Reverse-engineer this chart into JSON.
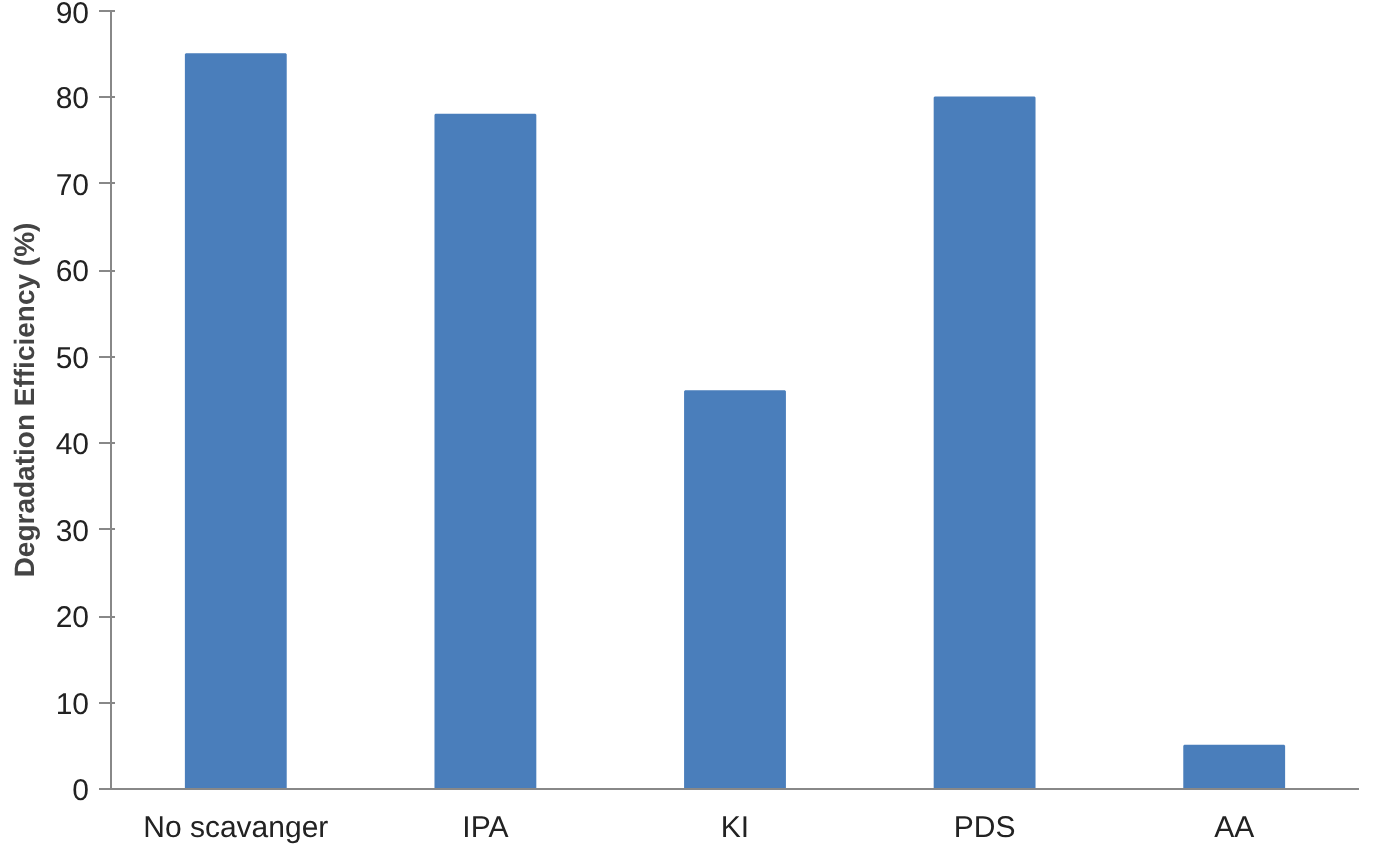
{
  "chart_data": {
    "type": "bar",
    "ylabel": "Degradation Efficiency (%)",
    "categories": [
      "No scavanger",
      "IPA",
      "KI",
      "PDS",
      "AA"
    ],
    "values": [
      85,
      78,
      46,
      80,
      5
    ],
    "color": "#4a7ebb",
    "ylim": [
      0,
      90
    ],
    "yticks": [
      0,
      10,
      20,
      30,
      40,
      50,
      60,
      70,
      80,
      90
    ],
    "grid": false
  }
}
